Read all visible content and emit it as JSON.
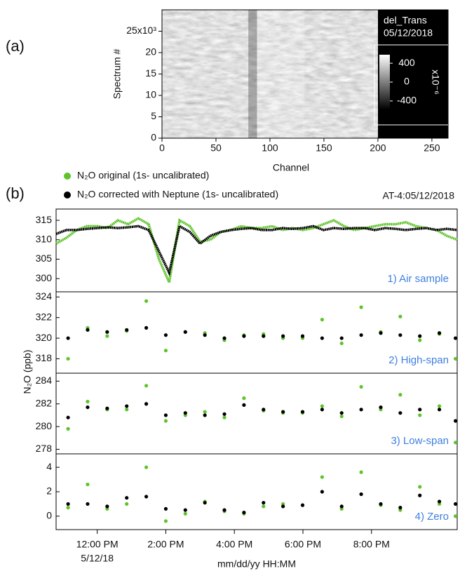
{
  "panel_labels": [
    "(a)",
    "(b)"
  ],
  "chart_data": [
    {
      "type": "heatmap",
      "xlabel": "Channel",
      "ylabel": "Spectrum #",
      "xlim": [
        0,
        265
      ],
      "xticks": [
        0,
        50,
        100,
        150,
        200,
        250
      ],
      "ylim": [
        0,
        30000
      ],
      "yticks": [
        {
          "value": 0,
          "label": "0"
        },
        {
          "value": 5000,
          "label": "5"
        },
        {
          "value": 10000,
          "label": "10"
        },
        {
          "value": 15000,
          "label": "15"
        },
        {
          "value": 20000,
          "label": "20"
        },
        {
          "value": 25000,
          "label": "25x10³"
        }
      ],
      "image_x": [
        0,
        200
      ],
      "legend_title": "del_Trans",
      "date": "05/12/2018",
      "colorbar": {
        "lim": [
          -580,
          580
        ],
        "ticks": [
          400,
          0,
          -400
        ],
        "label": "x10⁻⁶"
      }
    },
    {
      "type": "line",
      "annotation": "1) Air sample",
      "title": "AT-4:05/12/2018",
      "ylabel": "N₂O (ppb)",
      "xlim": [
        10.8,
        22.5
      ],
      "ylim": [
        296.6,
        317.9
      ],
      "yticks": [
        300,
        305,
        310,
        315
      ],
      "x": [
        10.8,
        11.1,
        11.4,
        11.7,
        12.0,
        12.3,
        12.6,
        12.9,
        13.2,
        13.5,
        13.8,
        14.1,
        14.4,
        14.7,
        15.0,
        15.3,
        15.6,
        15.9,
        16.2,
        16.5,
        16.8,
        17.1,
        17.4,
        17.7,
        18.0,
        18.3,
        18.6,
        18.9,
        19.2,
        19.5,
        19.8,
        20.1,
        20.4,
        20.7,
        21.0,
        21.3,
        21.6,
        21.9,
        22.2,
        22.5
      ],
      "series": [
        {
          "name": "N₂O original (1s- uncalibrated)",
          "color": "#5ec42a",
          "values": [
            309,
            310.5,
            312.5,
            313.5,
            313.5,
            313,
            315,
            314,
            315.5,
            314,
            305,
            299,
            315,
            313.5,
            309.5,
            310,
            312,
            312.5,
            313.5,
            313,
            313,
            313.5,
            312.5,
            313,
            312.5,
            313,
            314,
            315,
            313.5,
            312.5,
            313,
            313.5,
            314,
            314,
            314.5,
            313.5,
            313,
            312.5,
            311,
            310
          ]
        },
        {
          "name": "N₂O corrected with Neptune (1s- uncalibrated)",
          "color": "#000000",
          "values": [
            311.5,
            312.5,
            312.5,
            312.8,
            313,
            313.2,
            313,
            313.2,
            313.5,
            312.5,
            307,
            301.5,
            313.5,
            312,
            309,
            311,
            312,
            312.5,
            312.8,
            313,
            312.5,
            312.5,
            313,
            312.8,
            313,
            313.5,
            312.5,
            313,
            312.8,
            313,
            313,
            312.5,
            313,
            312.8,
            312.5,
            312.8,
            313,
            312.5,
            312.8,
            312.5
          ]
        }
      ]
    },
    {
      "type": "scatter",
      "annotation": "2) High-span",
      "xlim": [
        10.8,
        22.5
      ],
      "ylim": [
        316.6,
        324.5
      ],
      "yticks": [
        318,
        320,
        322,
        324
      ],
      "x": [
        11.15,
        11.72,
        12.29,
        12.86,
        13.43,
        14.0,
        14.57,
        15.14,
        15.71,
        16.28,
        16.85,
        17.42,
        17.99,
        18.56,
        19.13,
        19.7,
        20.27,
        20.84,
        21.41,
        21.98,
        22.45
      ],
      "series": [
        {
          "color": "#5ec42a",
          "values": [
            318,
            321,
            320.2,
            320.7,
            323.6,
            318.8,
            320.6,
            320.5,
            319.8,
            320.3,
            320.4,
            320,
            320,
            321.8,
            319.5,
            323,
            320.6,
            322.1,
            319.8,
            320.4,
            318
          ]
        },
        {
          "color": "#000000",
          "values": [
            320,
            320.8,
            320.6,
            320.8,
            321,
            320.3,
            320.6,
            320.3,
            320,
            320.2,
            320.2,
            320.2,
            320.2,
            320,
            320,
            320.3,
            320.5,
            320.3,
            320.2,
            320.5,
            320
          ]
        }
      ]
    },
    {
      "type": "scatter",
      "annotation": "3) Low-span",
      "xlim": [
        10.8,
        22.5
      ],
      "ylim": [
        277.6,
        284.7
      ],
      "yticks": [
        278,
        280,
        282,
        284
      ],
      "x": [
        11.15,
        11.72,
        12.29,
        12.86,
        13.43,
        14.0,
        14.57,
        15.14,
        15.71,
        16.28,
        16.85,
        17.42,
        17.99,
        18.56,
        19.13,
        19.7,
        20.27,
        20.84,
        21.41,
        21.98,
        22.45
      ],
      "series": [
        {
          "color": "#5ec42a",
          "values": [
            279.8,
            282.2,
            281.5,
            281.5,
            283.6,
            280.5,
            281,
            281.3,
            280.8,
            282.5,
            281.4,
            281.2,
            281.2,
            281.8,
            280.9,
            283.5,
            281.5,
            282.8,
            281,
            281.8,
            278.6
          ]
        },
        {
          "color": "#000000",
          "values": [
            280.8,
            281.7,
            281.6,
            281.8,
            282,
            281,
            281.2,
            281,
            281.1,
            281.9,
            281.5,
            281.3,
            281.3,
            281.5,
            281.2,
            281.5,
            281.7,
            281.2,
            281.5,
            281.5,
            280.5
          ]
        }
      ]
    },
    {
      "type": "scatter",
      "annotation": "4) Zero",
      "xlabel": "mm/dd/yy HH:MM",
      "date_label": "5/12/18",
      "xlim": [
        10.8,
        22.5
      ],
      "ylim": [
        -1.1,
        5.1
      ],
      "yticks": [
        0,
        2,
        4
      ],
      "xticks": [
        {
          "value": 12,
          "label": "12:00 PM"
        },
        {
          "value": 14,
          "label": "2:00 PM"
        },
        {
          "value": 16,
          "label": "4:00 PM"
        },
        {
          "value": 18,
          "label": "6:00 PM"
        },
        {
          "value": 20,
          "label": "8:00 PM"
        }
      ],
      "x": [
        11.15,
        11.72,
        12.29,
        12.86,
        13.43,
        14.0,
        14.57,
        15.14,
        15.71,
        16.28,
        16.85,
        17.42,
        17.99,
        18.56,
        19.13,
        19.7,
        20.27,
        20.84,
        21.41,
        21.98,
        22.45
      ],
      "series": [
        {
          "color": "#5ec42a",
          "values": [
            0.7,
            2.6,
            0.6,
            1,
            4,
            -0.4,
            0.2,
            1.2,
            0.4,
            0.2,
            0.8,
            1,
            0.9,
            3.2,
            0.6,
            3.6,
            0.9,
            0.5,
            2.4,
            1,
            0
          ]
        },
        {
          "color": "#000000",
          "values": [
            1,
            1,
            0.8,
            1.5,
            1.6,
            0.6,
            0.5,
            1.1,
            0.5,
            0.3,
            1.1,
            0.8,
            0.9,
            2,
            0.8,
            1.8,
            1,
            0.7,
            1.7,
            1.2,
            1
          ]
        }
      ]
    }
  ]
}
